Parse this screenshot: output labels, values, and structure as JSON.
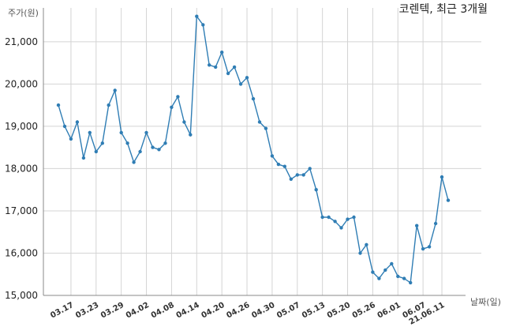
{
  "chart_data": {
    "type": "line",
    "title": "코렌텍, 최근 3개월",
    "ylabel": "주가(원)",
    "xlabel": "날짜(일)",
    "ylim": [
      15000,
      21800
    ],
    "y_ticks": [
      15000,
      16000,
      17000,
      18000,
      19000,
      20000,
      21000
    ],
    "y_tick_labels": [
      "15,000",
      "16,000",
      "17,000",
      "18,000",
      "19,000",
      "20,000",
      "21,000"
    ],
    "grid": true,
    "x_tick_labels": [
      "03.17",
      "03.23",
      "03.29",
      "04.02",
      "04.08",
      "04.14",
      "04.20",
      "04.26",
      "04.30",
      "05.07",
      "05.13",
      "05.20",
      "05.26",
      "06.01",
      "06.07",
      "21.06.11"
    ],
    "x_tick_indices": [
      2,
      6,
      10,
      14,
      18,
      22,
      26,
      30,
      34,
      38,
      42,
      46,
      50,
      54,
      58,
      61
    ],
    "series": [
      {
        "color": "#2f7db4",
        "values": [
          19500,
          19000,
          18700,
          19100,
          18250,
          18850,
          18400,
          18600,
          19500,
          19850,
          18850,
          18600,
          18150,
          18400,
          18850,
          18500,
          18450,
          18600,
          19450,
          19700,
          19100,
          18800,
          21600,
          21400,
          20450,
          20400,
          20750,
          20250,
          20400,
          20000,
          20150,
          19650,
          19100,
          18950,
          18300,
          18100,
          18050,
          17750,
          17850,
          17850,
          18000,
          17500,
          16850,
          16850,
          16750,
          16600,
          16800,
          16850,
          16000,
          16200,
          15550,
          15400,
          15600,
          15750,
          15450,
          15400,
          15300,
          16650,
          16100,
          16150,
          16700,
          17800,
          17250
        ]
      }
    ]
  }
}
